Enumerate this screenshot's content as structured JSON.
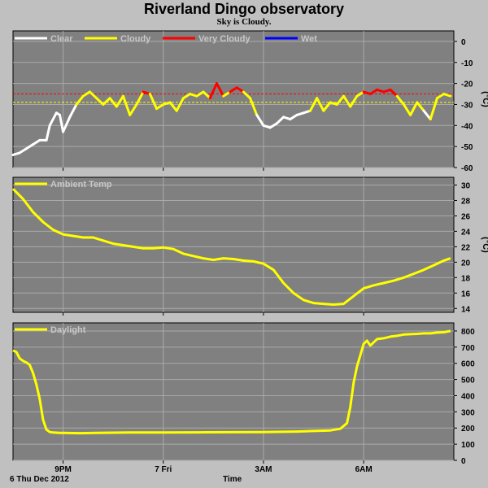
{
  "title": "Riverland Dingo observatory",
  "subtitle": "Sky is Cloudy.",
  "date_label": "6 Thu Dec 2012",
  "xlabel": "Time",
  "colors": {
    "plot_bg": "#808080",
    "frame": "#c0c0c0",
    "grid": "#aaaaaa",
    "clear": "#ffffff",
    "cloudy": "#ffff00",
    "very_cloudy": "#ff0000",
    "wet": "#0000ff",
    "threshold_red": "#ff0000",
    "threshold_yellow": "#ffff00"
  },
  "chart_data": [
    {
      "type": "line",
      "name": "sky-panel",
      "ylabel": "(°C)",
      "ylim": [
        -60,
        5
      ],
      "yticks": [
        0,
        -10,
        -20,
        -30,
        -40,
        -50,
        -60
      ],
      "grid": true,
      "legend_position": "top-left",
      "legend": [
        "Clear",
        "Cloudy",
        "Very Cloudy",
        "Wet"
      ],
      "xlim": [
        19.5,
        8.7
      ],
      "xticks": [
        {
          "x": 21,
          "label": "9PM"
        },
        {
          "x": 0,
          "label": "7 Fri"
        },
        {
          "x": 3,
          "label": "3AM"
        },
        {
          "x": 6,
          "label": "6AM"
        }
      ],
      "thresholds": [
        {
          "y": -25,
          "color": "red"
        },
        {
          "y": -29,
          "color": "yellow"
        }
      ],
      "x": [
        19.5,
        19.7,
        19.9,
        20.1,
        20.3,
        20.5,
        20.6,
        20.8,
        20.9,
        21.0,
        21.2,
        21.4,
        21.6,
        21.8,
        22.0,
        22.2,
        22.4,
        22.6,
        22.8,
        23.0,
        23.2,
        23.4,
        23.6,
        23.8,
        0.0,
        0.2,
        0.4,
        0.6,
        0.8,
        1.0,
        1.2,
        1.4,
        1.6,
        1.8,
        2.0,
        2.2,
        2.4,
        2.6,
        2.8,
        3.0,
        3.2,
        3.4,
        3.6,
        3.8,
        4.0,
        4.2,
        4.4,
        4.6,
        4.8,
        5.0,
        5.2,
        5.4,
        5.6,
        5.8,
        6.0,
        6.2,
        6.4,
        6.6,
        6.8,
        7.0,
        7.2,
        7.4,
        7.6,
        7.8,
        8.0,
        8.2,
        8.4,
        8.6
      ],
      "y": [
        -54,
        -53,
        -51,
        -49,
        -47,
        -47,
        -40,
        -34,
        -35,
        -43,
        -36,
        -30,
        -26,
        -24,
        -27,
        -30,
        -27,
        -31,
        -26,
        -35,
        -30,
        -24,
        -25,
        -32,
        -30,
        -29,
        -33,
        -27,
        -25,
        -26,
        -24,
        -27,
        -20,
        -26,
        -24,
        -22,
        -24,
        -27,
        -35,
        -40,
        -41,
        -39,
        -36,
        -37,
        -35,
        -34,
        -33,
        -27,
        -33,
        -29,
        -30,
        -26,
        -31,
        -26,
        -24,
        -25,
        -23,
        -24,
        -23,
        -26,
        -30,
        -35,
        -29,
        -33,
        -37,
        -27,
        -25,
        -26
      ]
    },
    {
      "type": "line",
      "name": "ambient-temp-panel",
      "series_name": "Ambient Temp",
      "ylabel": "(°C)",
      "ylim": [
        13.5,
        31
      ],
      "yticks": [
        30,
        28,
        26,
        24,
        22,
        20,
        18,
        16,
        14
      ],
      "grid": true,
      "legend_position": "top-left",
      "xlim": [
        19.5,
        8.7
      ],
      "xticks": [
        {
          "x": 21,
          "label": "9PM"
        },
        {
          "x": 0,
          "label": "7 Fri"
        },
        {
          "x": 3,
          "label": "3AM"
        },
        {
          "x": 6,
          "label": "6AM"
        }
      ],
      "x": [
        19.5,
        19.8,
        20.1,
        20.4,
        20.7,
        21.0,
        21.3,
        21.6,
        21.9,
        22.2,
        22.5,
        22.8,
        23.1,
        23.4,
        23.7,
        0.0,
        0.3,
        0.6,
        0.9,
        1.2,
        1.5,
        1.8,
        2.1,
        2.4,
        2.7,
        3.0,
        3.3,
        3.6,
        3.9,
        4.2,
        4.5,
        4.8,
        5.1,
        5.4,
        5.7,
        6.0,
        6.3,
        6.6,
        6.9,
        7.2,
        7.5,
        7.8,
        8.1,
        8.4,
        8.6
      ],
      "y": [
        29.5,
        28.2,
        26.5,
        25.2,
        24.2,
        23.6,
        23.4,
        23.2,
        23.2,
        22.8,
        22.4,
        22.2,
        22.0,
        21.8,
        21.8,
        21.9,
        21.7,
        21.1,
        20.8,
        20.5,
        20.3,
        20.5,
        20.4,
        20.2,
        20.1,
        19.8,
        19.0,
        17.3,
        16.0,
        15.1,
        14.7,
        14.6,
        14.5,
        14.6,
        15.6,
        16.6,
        17.0,
        17.3,
        17.6,
        18.0,
        18.5,
        19.0,
        19.6,
        20.2,
        20.5
      ]
    },
    {
      "type": "line",
      "name": "daylight-panel",
      "series_name": "Daylight",
      "ylim": [
        0,
        850
      ],
      "yticks": [
        800,
        700,
        600,
        500,
        400,
        300,
        200,
        100,
        0
      ],
      "grid": true,
      "legend_position": "top-left",
      "xlim": [
        19.5,
        8.7
      ],
      "xticks": [
        {
          "x": 21,
          "label": "9PM"
        },
        {
          "x": 0,
          "label": "7 Fri"
        },
        {
          "x": 3,
          "label": "3AM"
        },
        {
          "x": 6,
          "label": "6AM"
        }
      ],
      "x": [
        19.5,
        19.6,
        19.7,
        19.8,
        19.9,
        20.0,
        20.1,
        20.2,
        20.3,
        20.4,
        20.5,
        20.6,
        20.7,
        20.8,
        20.9,
        21.0,
        21.5,
        22.0,
        23.0,
        0.0,
        1.0,
        2.0,
        3.0,
        4.0,
        5.0,
        5.3,
        5.5,
        5.6,
        5.7,
        5.8,
        5.9,
        6.0,
        6.1,
        6.2,
        6.4,
        6.6,
        6.8,
        7.0,
        7.2,
        7.4,
        7.6,
        7.8,
        8.0,
        8.2,
        8.4,
        8.6
      ],
      "y": [
        680,
        670,
        630,
        615,
        605,
        590,
        540,
        470,
        380,
        250,
        190,
        175,
        172,
        171,
        170,
        170,
        168,
        170,
        172,
        172,
        173,
        174,
        175,
        178,
        185,
        195,
        230,
        330,
        480,
        580,
        650,
        720,
        740,
        710,
        750,
        755,
        765,
        770,
        778,
        780,
        782,
        785,
        785,
        790,
        792,
        800
      ]
    }
  ]
}
